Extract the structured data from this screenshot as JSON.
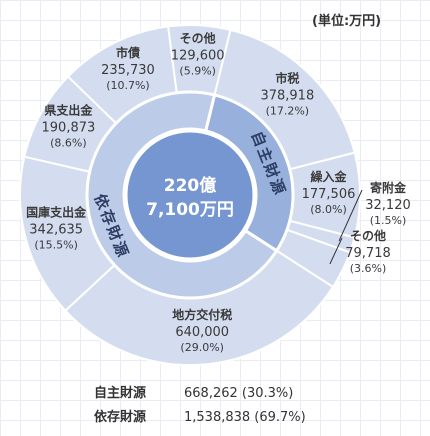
{
  "unit_label": "(単位:万円)",
  "colors": {
    "outer": "#d4ddef",
    "inner_jishu": "#98b0dc",
    "inner_izon": "#bccbe8",
    "center": "#7696d1",
    "separator": "#ffffff",
    "text": "#3a3a3a"
  },
  "chart_data": {
    "type": "pie",
    "center_label": [
      "220億",
      "7,100万円"
    ],
    "outer_series": [
      {
        "label": "市税",
        "value": "378,918",
        "pct": "(17.2%)",
        "v": 378918
      },
      {
        "label": "繰入金",
        "value": "177,506",
        "pct": "(8.0%)",
        "v": 177506
      },
      {
        "label": "寄附金",
        "value": "32,120",
        "pct": "(1.5%)",
        "v": 32120
      },
      {
        "label": "その他",
        "value": "79,718",
        "pct": "(3.6%)",
        "v": 79718
      },
      {
        "label": "地方交付税",
        "value": "640,000",
        "pct": "(29.0%)",
        "v": 640000
      },
      {
        "label": "国庫支出金",
        "value": "342,635",
        "pct": "(15.5%)",
        "v": 342635
      },
      {
        "label": "県支出金",
        "value": "190,873",
        "pct": "(8.6%)",
        "v": 190873
      },
      {
        "label": "市債",
        "value": "235,730",
        "pct": "(10.7%)",
        "v": 235730
      },
      {
        "label": "その他",
        "value": "129,600",
        "pct": "(5.9%)",
        "v": 129600
      }
    ],
    "inner_series": [
      {
        "label": "自主財源",
        "v": 668262
      },
      {
        "label": "依存財源",
        "v": 1538838
      }
    ]
  },
  "summary": [
    {
      "label": "自主財源",
      "value": "668,262 (30.3%)"
    },
    {
      "label": "依存財源",
      "value": "1,538,838 (69.7%)"
    }
  ]
}
